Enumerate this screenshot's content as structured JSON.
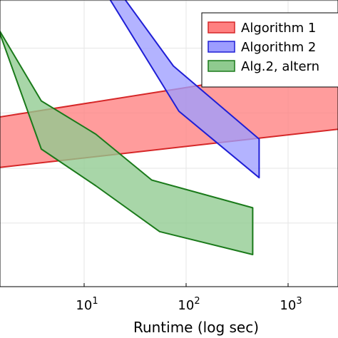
{
  "chart_data": {
    "type": "area",
    "xlabel": "Runtime (log sec)",
    "ylabel": "",
    "xscale": "log",
    "xlim": [
      1,
      5000
    ],
    "ylim": [
      0,
      1
    ],
    "grid": true,
    "legend_position": "top-right",
    "x_ticks": [
      {
        "value": 10,
        "base": "10",
        "exp": "1"
      },
      {
        "value": 100,
        "base": "10",
        "exp": "2"
      },
      {
        "value": 1000,
        "base": "10",
        "exp": "3"
      }
    ],
    "series": [
      {
        "name": "Algorithm 1",
        "fill": "#ff8080",
        "stroke": "#d62728",
        "upper": [
          [
            1,
            0.418
          ],
          [
            4600,
            0.212
          ]
        ],
        "lower": [
          [
            1,
            0.591
          ],
          [
            4600,
            0.444
          ]
        ]
      },
      {
        "name": "Algorithm 2",
        "fill": "#9d9dff",
        "stroke": "#1f1fd6",
        "upper": [
          [
            22,
            -0.03
          ],
          [
            75,
            0.23
          ],
          [
            520,
            0.485
          ]
        ],
        "lower": [
          [
            16,
            -0.03
          ],
          [
            85,
            0.388
          ],
          [
            520,
            0.62
          ]
        ]
      },
      {
        "name": "Alg.2, altern",
        "fill": "#8fca8f",
        "stroke": "#1a7a1a",
        "upper": [
          [
            1,
            0.005
          ],
          [
            3.8,
            0.352
          ],
          [
            13,
            0.468
          ],
          [
            46,
            0.628
          ],
          [
            450,
            0.725
          ]
        ],
        "lower": [
          [
            1.15,
            0.005
          ],
          [
            3.8,
            0.52
          ],
          [
            13,
            0.648
          ],
          [
            55,
            0.808
          ],
          [
            450,
            0.888
          ]
        ]
      }
    ]
  }
}
